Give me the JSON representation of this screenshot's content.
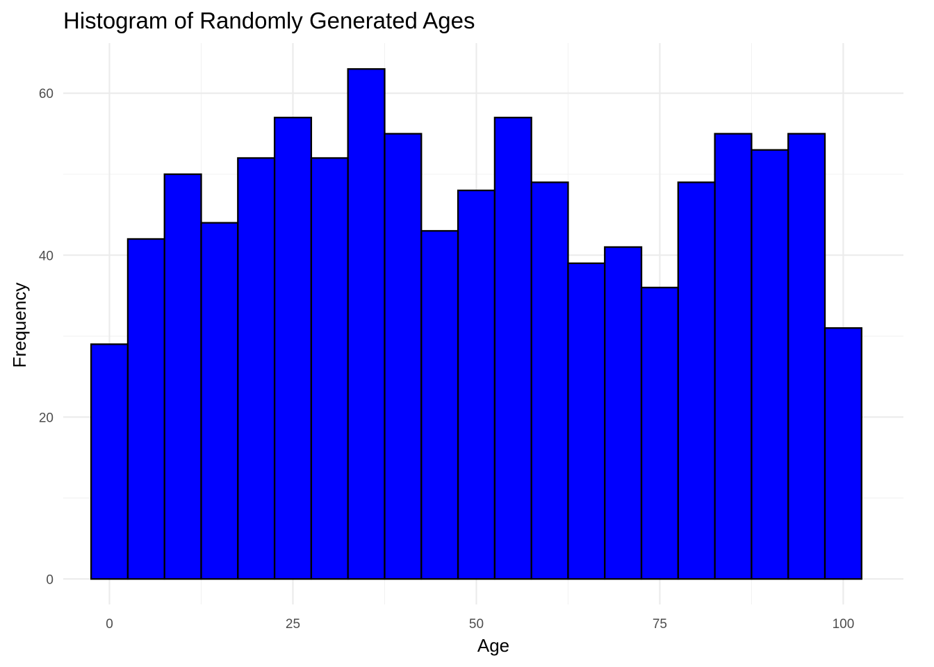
{
  "chart_data": {
    "type": "bar",
    "title": "Histogram of Randomly Generated Ages",
    "xlabel": "Age",
    "ylabel": "Frequency",
    "bin_width": 5,
    "bin_centers": [
      0,
      5,
      10,
      15,
      20,
      25,
      30,
      35,
      40,
      45,
      50,
      55,
      60,
      65,
      70,
      75,
      80,
      85,
      90,
      95,
      100
    ],
    "values": [
      29,
      42,
      50,
      44,
      52,
      57,
      52,
      63,
      55,
      43,
      48,
      57,
      49,
      39,
      41,
      36,
      49,
      55,
      53,
      55,
      31
    ],
    "xlim": [
      -6.3,
      108.2
    ],
    "ylim": [
      -3.15,
      66.2
    ],
    "x_ticks": [
      0,
      25,
      50,
      75,
      100
    ],
    "y_ticks": [
      0,
      20,
      40,
      60
    ],
    "bar_color": "#0000FF",
    "outline_color": "#000000",
    "grid": true,
    "legend": "none"
  }
}
